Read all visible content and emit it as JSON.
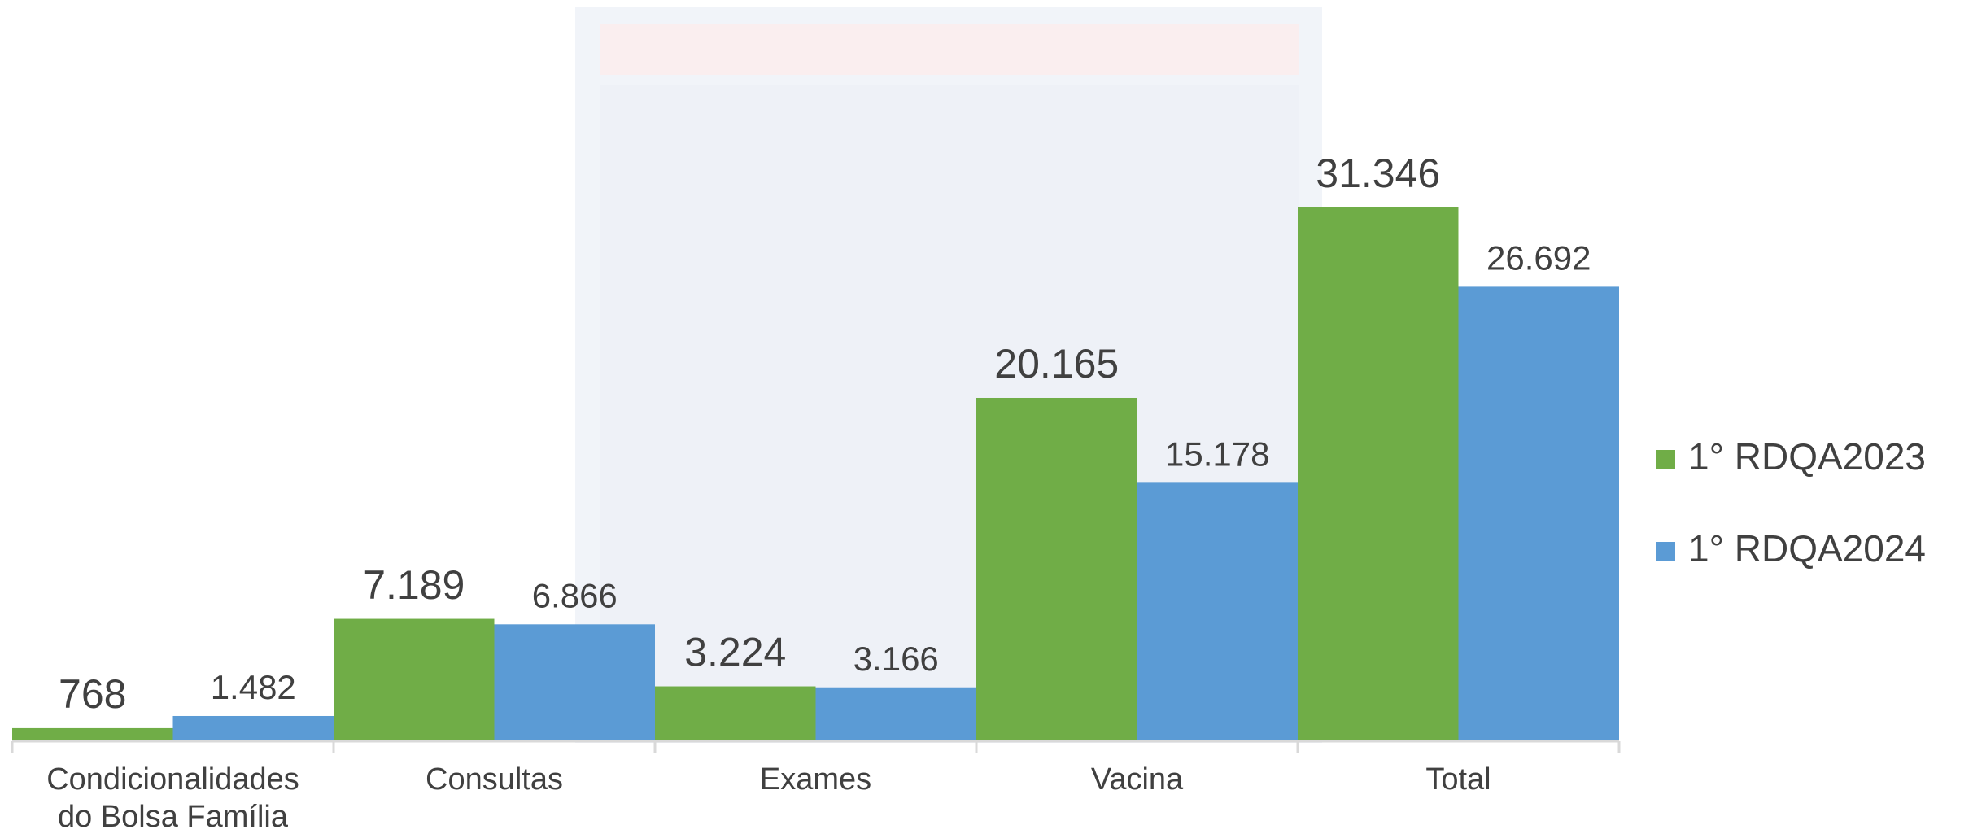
{
  "chart_data": {
    "type": "bar",
    "categories": [
      "Condicionalidades do Bolsa Família",
      "Consultas",
      "Exames",
      "Vacina",
      "Total"
    ],
    "series": [
      {
        "name": "1° RDQA2023",
        "color": "#70ad47",
        "values": [
          768,
          7189,
          3224,
          20165,
          31346
        ],
        "value_labels": [
          "768",
          "7.189",
          "3.224",
          "20.165",
          "31.346"
        ]
      },
      {
        "name": "1° RDQA2024",
        "color": "#5b9bd5",
        "values": [
          1482,
          6866,
          3166,
          15178,
          26692
        ],
        "value_labels": [
          "1.482",
          "6.866",
          "3.166",
          "15.178",
          "26.692"
        ]
      }
    ],
    "legend": "right"
  }
}
